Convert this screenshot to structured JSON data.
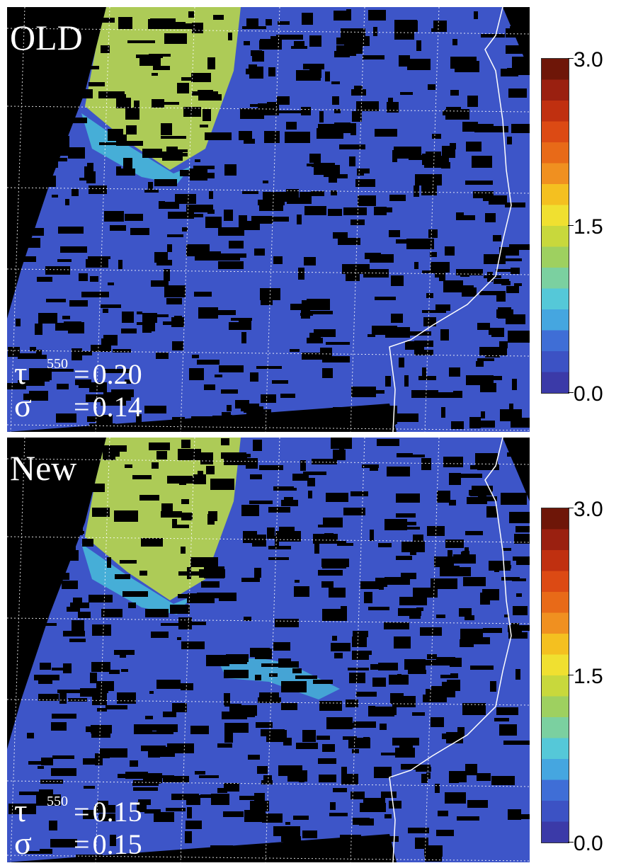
{
  "panels": [
    {
      "label": "OLD",
      "stats": {
        "tau_symbol": "τ",
        "tau_sup": "550",
        "tau_eq": "=",
        "tau_value": "0.20",
        "sigma_symbol": "σ",
        "sigma_eq": "=",
        "sigma_value": "0.14"
      },
      "colorbar": {
        "max_label": "3.0",
        "mid_label": "1.5",
        "min_label": "0.0",
        "range": [
          0.0,
          3.0
        ]
      }
    },
    {
      "label": "New",
      "stats": {
        "tau_symbol": "τ",
        "tau_sup": "550",
        "tau_eq": "=",
        "tau_value": "0.15",
        "sigma_symbol": "σ",
        "sigma_eq": "=",
        "sigma_value": "0.15"
      },
      "colorbar": {
        "max_label": "3.0",
        "mid_label": "1.5",
        "min_label": "0.0",
        "range": [
          0.0,
          3.0
        ]
      }
    }
  ],
  "colors": {
    "background": "#000000",
    "aerosol_low": "#3d55c8",
    "aerosol_mid": "#47b8d8",
    "aerosol_high": "#b9d84a",
    "coastline": "#ffffff",
    "graticule": "#ffffff"
  },
  "colormap": [
    "#3b3aa8",
    "#3c52c4",
    "#3f6ed6",
    "#45a6e0",
    "#55c8d8",
    "#7bd0a0",
    "#9ed060",
    "#c8d83c",
    "#f0e030",
    "#f4c020",
    "#f09020",
    "#e86a18",
    "#dc4a14",
    "#c03010",
    "#9a2010",
    "#6e1608"
  ]
}
